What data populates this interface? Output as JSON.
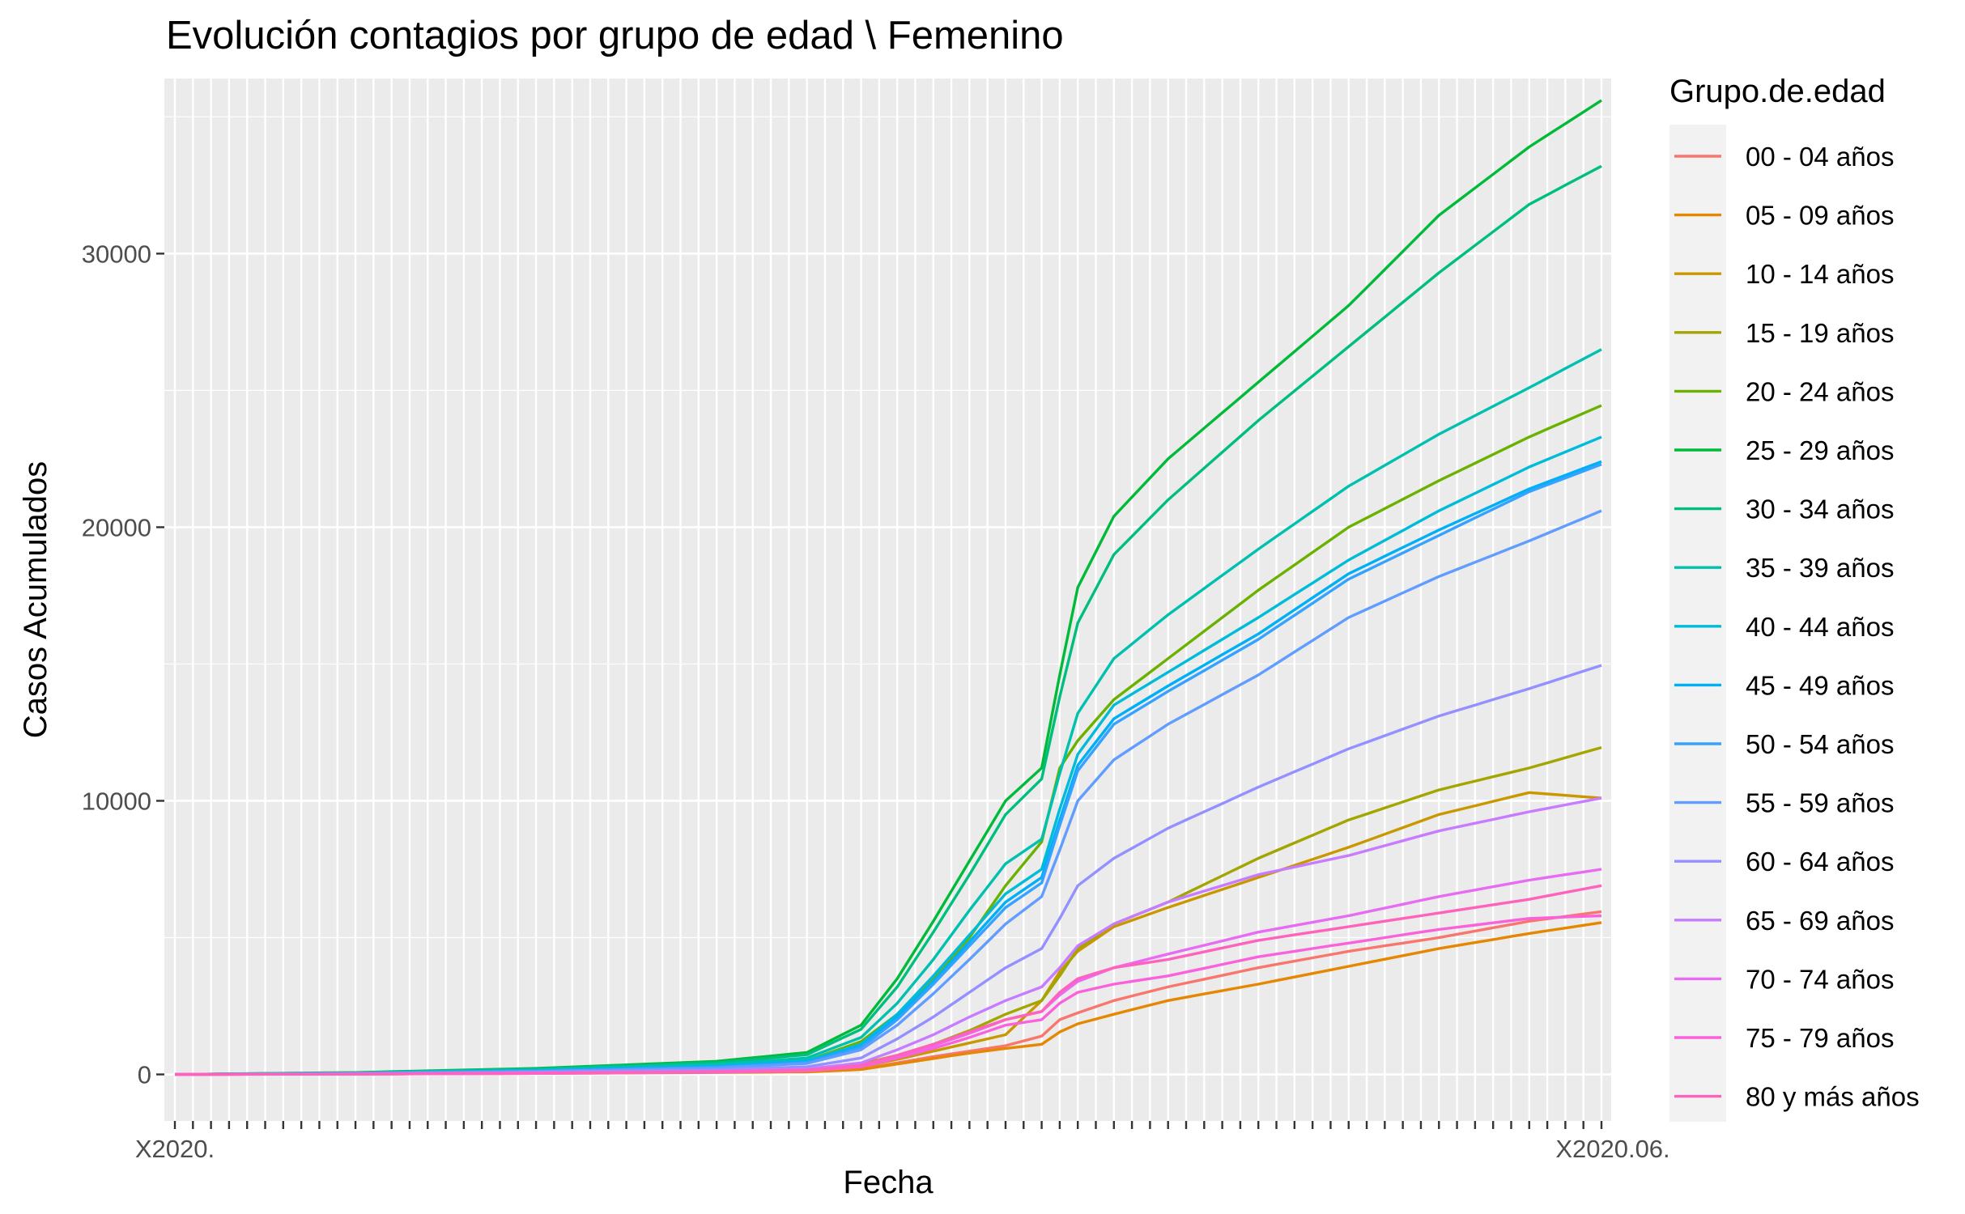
{
  "chart_data": {
    "type": "line",
    "title": "Evolución contagios por grupo de edad \\ Femenino",
    "xlabel": "Fecha",
    "ylabel": "Casos Acumulados",
    "ylim": [
      -1700,
      36400
    ],
    "yticks": [
      0,
      10000,
      20000,
      30000
    ],
    "ytick_labels": [
      "0",
      "10000",
      "20000",
      "30000"
    ],
    "x_category_count": 80,
    "x_first_label": "X2020.",
    "x_last_label": "X2020.06.",
    "grid": true,
    "legend": {
      "title": "Grupo.de.edad",
      "position": "right"
    },
    "key_points_x": [
      0,
      10,
      20,
      30,
      35,
      38,
      40,
      42,
      44,
      46,
      48,
      49,
      50,
      52,
      55,
      60,
      65,
      70,
      75,
      79
    ],
    "series": [
      {
        "name": "00 - 04 años",
        "color": "#F8766D",
        "values": [
          0,
          15,
          40,
          80,
          110,
          200,
          420,
          650,
          850,
          1050,
          1400,
          2000,
          2250,
          2700,
          3200,
          3900,
          4500,
          5000,
          5600,
          5950
        ]
      },
      {
        "name": "05 - 09 años",
        "color": "#E58700",
        "values": [
          0,
          15,
          35,
          70,
          90,
          180,
          380,
          580,
          780,
          950,
          1100,
          1550,
          1850,
          2200,
          2700,
          3300,
          3950,
          4600,
          5150,
          5550
        ]
      },
      {
        "name": "10 - 14 años",
        "color": "#C99800",
        "values": [
          0,
          25,
          55,
          100,
          140,
          280,
          550,
          850,
          1150,
          1450,
          2700,
          3750,
          4500,
          5400,
          6100,
          7200,
          8300,
          9500,
          10300,
          10100
        ]
      },
      {
        "name": "15 - 19 años",
        "color": "#A3A500",
        "values": [
          0,
          20,
          50,
          100,
          150,
          380,
          700,
          1100,
          1600,
          2200,
          2700,
          3600,
          4600,
          5500,
          6300,
          7900,
          9300,
          10400,
          11200,
          11950
        ]
      },
      {
        "name": "20 - 24 años",
        "color": "#6BB100",
        "values": [
          0,
          50,
          150,
          300,
          500,
          1200,
          2200,
          3500,
          5000,
          6900,
          8500,
          11200,
          12200,
          13700,
          15200,
          17700,
          20000,
          21700,
          23300,
          24450
        ]
      },
      {
        "name": "25 - 29 años",
        "color": "#00BA38",
        "values": [
          0,
          70,
          220,
          480,
          800,
          1800,
          3500,
          5600,
          7800,
          10000,
          11200,
          14600,
          17800,
          20400,
          22500,
          25300,
          28100,
          31400,
          33900,
          35600
        ]
      },
      {
        "name": "30 - 34 años",
        "color": "#00BF7D",
        "values": [
          0,
          65,
          200,
          440,
          720,
          1650,
          3200,
          5200,
          7300,
          9500,
          10800,
          13800,
          16500,
          19000,
          21000,
          23900,
          26600,
          29300,
          31800,
          33200
        ]
      },
      {
        "name": "35 - 39 años",
        "color": "#00C0AF",
        "values": [
          0,
          55,
          170,
          370,
          600,
          1350,
          2600,
          4200,
          6000,
          7700,
          8600,
          11000,
          13200,
          15200,
          16800,
          19200,
          21500,
          23400,
          25100,
          26500
        ]
      },
      {
        "name": "40 - 44 años",
        "color": "#00BCD8",
        "values": [
          0,
          45,
          140,
          300,
          500,
          1100,
          2200,
          3600,
          5100,
          6600,
          7500,
          9700,
          11700,
          13500,
          14700,
          16700,
          18800,
          20600,
          22200,
          23300
        ]
      },
      {
        "name": "45 - 49 años",
        "color": "#00B0F6",
        "values": [
          0,
          40,
          130,
          280,
          460,
          1050,
          2100,
          3400,
          4850,
          6300,
          7200,
          9300,
          11300,
          13000,
          14200,
          16100,
          18300,
          19900,
          21400,
          22400
        ]
      },
      {
        "name": "50 - 54 años",
        "color": "#35A2FF",
        "values": [
          0,
          38,
          120,
          260,
          430,
          980,
          2000,
          3300,
          4700,
          6100,
          7000,
          9100,
          11100,
          12800,
          14000,
          15900,
          18100,
          19700,
          21300,
          22300
        ]
      },
      {
        "name": "55 - 59 años",
        "color": "#619CFF",
        "values": [
          0,
          35,
          110,
          240,
          400,
          900,
          1800,
          2950,
          4200,
          5500,
          6500,
          8200,
          10000,
          11500,
          12800,
          14600,
          16700,
          18200,
          19500,
          20600
        ]
      },
      {
        "name": "60 - 64 años",
        "color": "#9590FF",
        "values": [
          0,
          25,
          80,
          170,
          280,
          600,
          1300,
          2100,
          3000,
          3900,
          4600,
          5700,
          6900,
          7900,
          9000,
          10500,
          11900,
          13100,
          14100,
          14950
        ]
      },
      {
        "name": "65 - 69 años",
        "color": "#C77CFF",
        "values": [
          0,
          20,
          60,
          120,
          200,
          420,
          900,
          1450,
          2100,
          2700,
          3200,
          3900,
          4700,
          5500,
          6300,
          7300,
          8000,
          8900,
          9600,
          10100
        ]
      },
      {
        "name": "70 - 74 años",
        "color": "#E76BF3",
        "values": [
          0,
          15,
          40,
          90,
          150,
          300,
          650,
          1050,
          1500,
          2000,
          2300,
          2900,
          3400,
          3900,
          4400,
          5200,
          5800,
          6500,
          7100,
          7500
        ]
      },
      {
        "name": "75 - 79 años",
        "color": "#FA62DB",
        "values": [
          0,
          12,
          35,
          80,
          130,
          280,
          600,
          950,
          1350,
          1800,
          2000,
          2600,
          3000,
          3300,
          3600,
          4300,
          4800,
          5300,
          5700,
          5800
        ]
      },
      {
        "name": "80 y más años",
        "color": "#FF62BC",
        "values": [
          0,
          15,
          45,
          100,
          160,
          330,
          700,
          1100,
          1550,
          2000,
          2300,
          3000,
          3500,
          3900,
          4200,
          4900,
          5400,
          5900,
          6400,
          6900
        ]
      }
    ]
  }
}
